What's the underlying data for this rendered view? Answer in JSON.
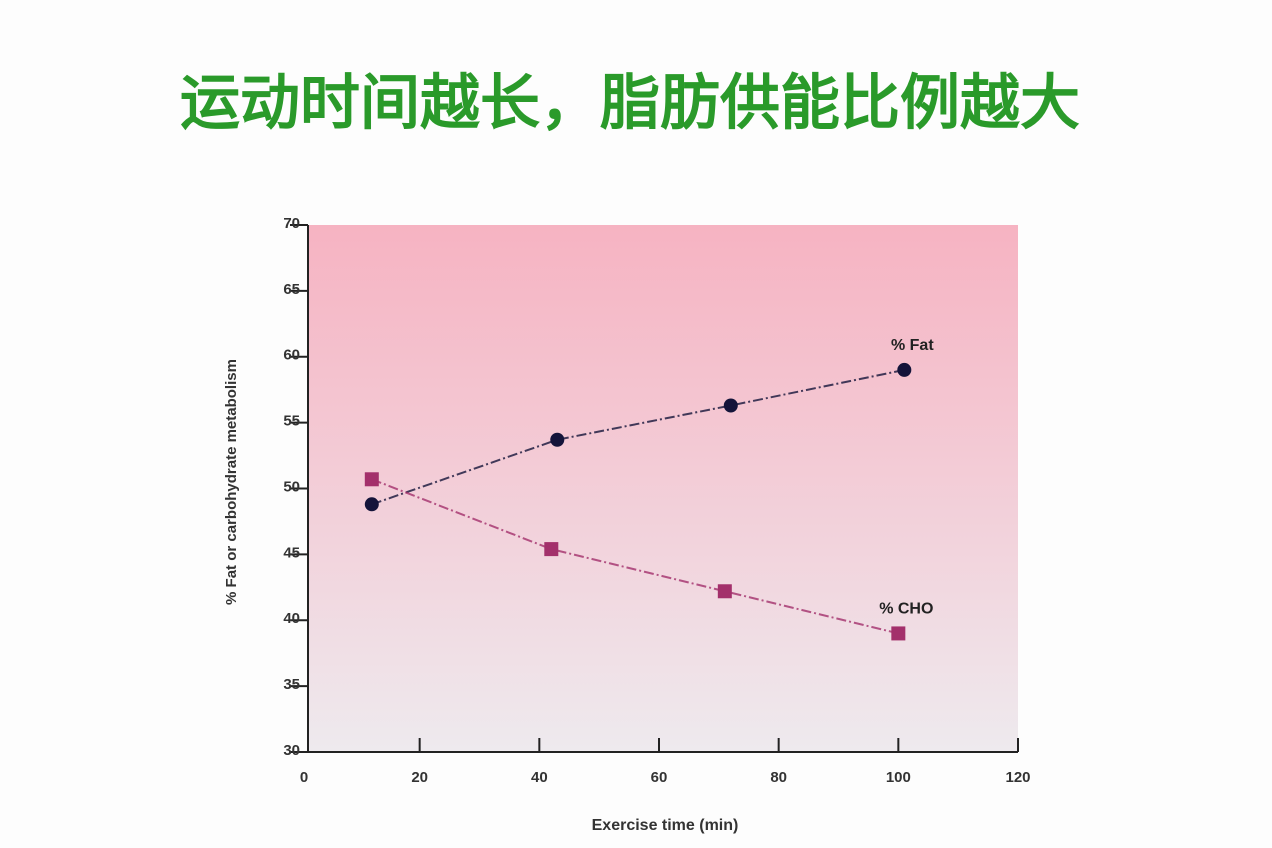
{
  "chart_data": {
    "type": "line",
    "title": "运动时间越长，脂肪供能比例越大",
    "x_label": "Exercise time (min)",
    "y_label": "% Fat or carbohydrate metabolism",
    "xlim": [
      0,
      120
    ],
    "xticks": [
      0,
      20,
      40,
      60,
      80,
      100,
      120
    ],
    "ylim": [
      30,
      70
    ],
    "yticks": [
      30,
      35,
      40,
      45,
      50,
      55,
      60,
      65,
      70
    ],
    "series": [
      {
        "name": "% Fat",
        "color": "#14143a",
        "marker": "circle",
        "x": [
          12,
          43,
          72,
          101
        ],
        "values": [
          48.8,
          53.7,
          56.3,
          59
        ]
      },
      {
        "name": "% CHO",
        "color": "#a3306b",
        "marker": "square",
        "x": [
          12,
          42,
          71,
          100
        ],
        "values": [
          50.7,
          45.4,
          42.2,
          39
        ]
      }
    ]
  }
}
